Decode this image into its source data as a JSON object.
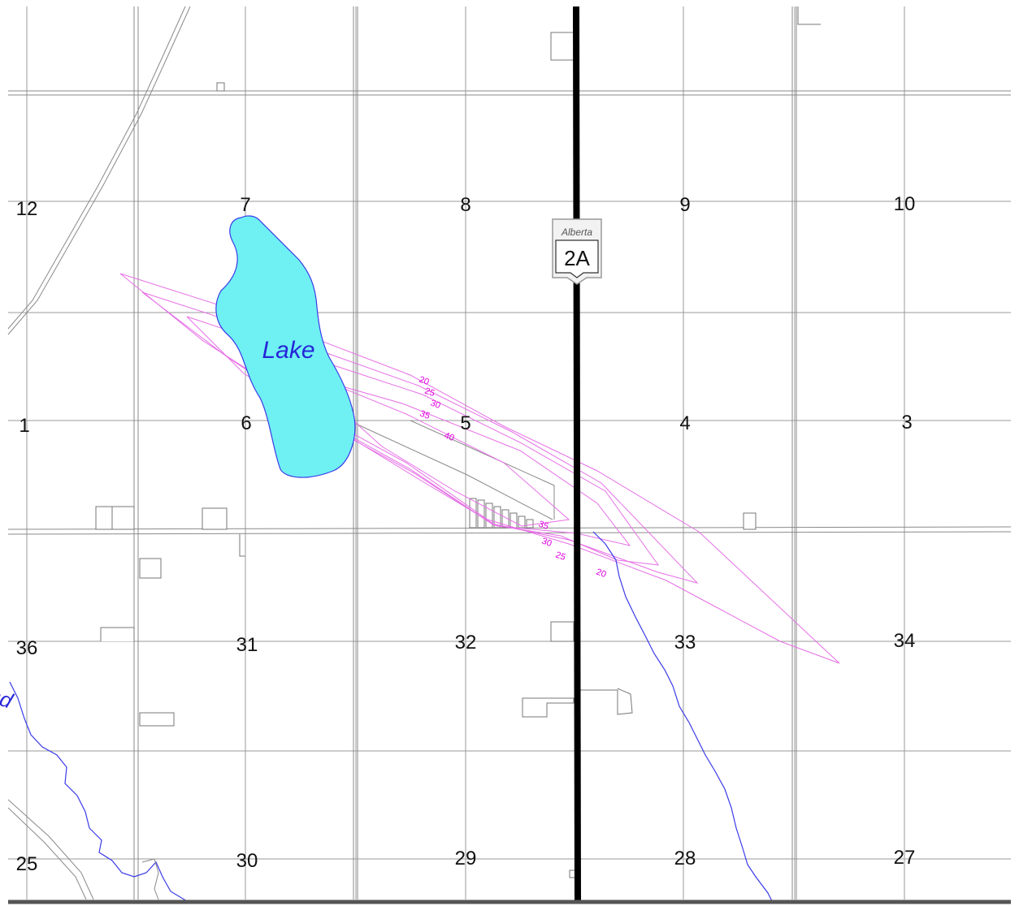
{
  "map": {
    "section_numbers": {
      "s12": "12",
      "s7": "7",
      "s8": "8",
      "s9": "9",
      "s10": "10",
      "s1": "1",
      "s6": "6",
      "s5": "5",
      "s4": "4",
      "s3": "3",
      "s36": "36",
      "s31": "31",
      "s32": "32",
      "s33": "33",
      "s34": "34",
      "s25": "25",
      "s30": "30",
      "s29": "29",
      "s28": "28",
      "s27": "27"
    },
    "lake_label": "Lake",
    "river_label_fragment": "pur",
    "highway_shield": {
      "province": "Alberta",
      "route": "2A"
    },
    "contour_labels": {
      "n20": "20",
      "n25": "25",
      "n30": "30",
      "n35": "35",
      "n40": "40",
      "s35": "35",
      "s30": "30",
      "s25": "25",
      "s20": "20"
    },
    "colors": {
      "lake_fill": "#6ff0f2",
      "lake_outline": "#3a3ae8",
      "lake_text": "#2626d9",
      "contour": "#e66fe6",
      "contour_text": "#e000e0",
      "river": "#3a3ae8",
      "highway": "#000000"
    }
  }
}
